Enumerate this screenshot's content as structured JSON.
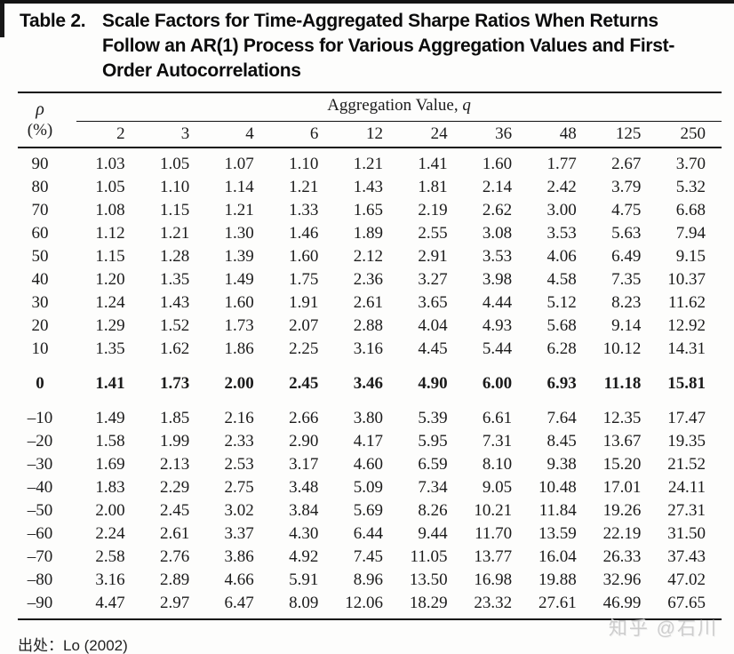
{
  "title": {
    "label": "Table 2.",
    "text": "Scale Factors for Time-Aggregated Sharpe Ratios When Returns Follow an AR(1) Process for Various Aggregation Values and First-Order Autocorrelations"
  },
  "table": {
    "group_header_prefix": "Aggregation Value, ",
    "group_header_q": "q",
    "rho_header_symbol": "ρ",
    "rho_header_unit": "(%)",
    "columns": [
      "2",
      "3",
      "4",
      "6",
      "12",
      "24",
      "36",
      "48",
      "125",
      "250"
    ],
    "rows": [
      {
        "rho": "90",
        "values": [
          "1.03",
          "1.05",
          "1.07",
          "1.10",
          "1.21",
          "1.41",
          "1.60",
          "1.77",
          "2.67",
          "3.70"
        ]
      },
      {
        "rho": "80",
        "values": [
          "1.05",
          "1.10",
          "1.14",
          "1.21",
          "1.43",
          "1.81",
          "2.14",
          "2.42",
          "3.79",
          "5.32"
        ]
      },
      {
        "rho": "70",
        "values": [
          "1.08",
          "1.15",
          "1.21",
          "1.33",
          "1.65",
          "2.19",
          "2.62",
          "3.00",
          "4.75",
          "6.68"
        ]
      },
      {
        "rho": "60",
        "values": [
          "1.12",
          "1.21",
          "1.30",
          "1.46",
          "1.89",
          "2.55",
          "3.08",
          "3.53",
          "5.63",
          "7.94"
        ]
      },
      {
        "rho": "50",
        "values": [
          "1.15",
          "1.28",
          "1.39",
          "1.60",
          "2.12",
          "2.91",
          "3.53",
          "4.06",
          "6.49",
          "9.15"
        ]
      },
      {
        "rho": "40",
        "values": [
          "1.20",
          "1.35",
          "1.49",
          "1.75",
          "2.36",
          "3.27",
          "3.98",
          "4.58",
          "7.35",
          "10.37"
        ]
      },
      {
        "rho": "30",
        "values": [
          "1.24",
          "1.43",
          "1.60",
          "1.91",
          "2.61",
          "3.65",
          "4.44",
          "5.12",
          "8.23",
          "11.62"
        ]
      },
      {
        "rho": "20",
        "values": [
          "1.29",
          "1.52",
          "1.73",
          "2.07",
          "2.88",
          "4.04",
          "4.93",
          "5.68",
          "9.14",
          "12.92"
        ]
      },
      {
        "rho": "10",
        "values": [
          "1.35",
          "1.62",
          "1.86",
          "2.25",
          "3.16",
          "4.45",
          "5.44",
          "6.28",
          "10.12",
          "14.31"
        ]
      },
      {
        "rho": "0",
        "bold": true,
        "values": [
          "1.41",
          "1.73",
          "2.00",
          "2.45",
          "3.46",
          "4.90",
          "6.00",
          "6.93",
          "11.18",
          "15.81"
        ]
      },
      {
        "rho": "–10",
        "values": [
          "1.49",
          "1.85",
          "2.16",
          "2.66",
          "3.80",
          "5.39",
          "6.61",
          "7.64",
          "12.35",
          "17.47"
        ]
      },
      {
        "rho": "–20",
        "values": [
          "1.58",
          "1.99",
          "2.33",
          "2.90",
          "4.17",
          "5.95",
          "7.31",
          "8.45",
          "13.67",
          "19.35"
        ]
      },
      {
        "rho": "–30",
        "values": [
          "1.69",
          "2.13",
          "2.53",
          "3.17",
          "4.60",
          "6.59",
          "8.10",
          "9.38",
          "15.20",
          "21.52"
        ]
      },
      {
        "rho": "–40",
        "values": [
          "1.83",
          "2.29",
          "2.75",
          "3.48",
          "5.09",
          "7.34",
          "9.05",
          "10.48",
          "17.01",
          "24.11"
        ]
      },
      {
        "rho": "–50",
        "values": [
          "2.00",
          "2.45",
          "3.02",
          "3.84",
          "5.69",
          "8.26",
          "10.21",
          "11.84",
          "19.26",
          "27.31"
        ]
      },
      {
        "rho": "–60",
        "values": [
          "2.24",
          "2.61",
          "3.37",
          "4.30",
          "6.44",
          "9.44",
          "11.70",
          "13.59",
          "22.19",
          "31.50"
        ]
      },
      {
        "rho": "–70",
        "values": [
          "2.58",
          "2.76",
          "3.86",
          "4.92",
          "7.45",
          "11.05",
          "13.77",
          "16.04",
          "26.33",
          "37.43"
        ]
      },
      {
        "rho": "–80",
        "values": [
          "3.16",
          "2.89",
          "4.66",
          "5.91",
          "8.96",
          "13.50",
          "16.98",
          "19.88",
          "32.96",
          "47.02"
        ]
      },
      {
        "rho": "–90",
        "values": [
          "4.47",
          "2.97",
          "6.47",
          "8.09",
          "12.06",
          "18.29",
          "23.32",
          "27.61",
          "46.99",
          "67.65"
        ]
      }
    ]
  },
  "footer": {
    "source": "出处：Lo (2002)",
    "watermark": "知乎 @石川"
  }
}
